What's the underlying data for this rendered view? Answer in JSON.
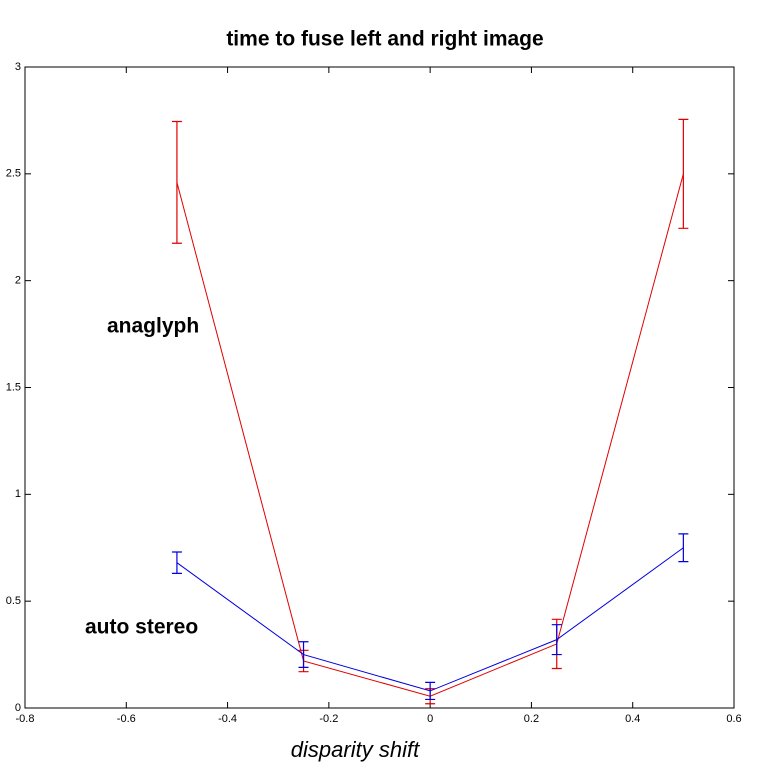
{
  "chart_data": {
    "type": "line",
    "title": "time to fuse left and right image",
    "x_label": "disparity shift",
    "x": [
      -0.5,
      -0.25,
      0,
      0.25,
      0.5
    ],
    "series": [
      {
        "name": "anaglyph",
        "color": "#e00000",
        "values": [
          2.46,
          0.22,
          0.055,
          0.3,
          2.5
        ],
        "errors": [
          0.285,
          0.05,
          0.035,
          0.115,
          0.255
        ]
      },
      {
        "name": "auto stereo",
        "color": "#0000e0",
        "values": [
          0.68,
          0.25,
          0.08,
          0.32,
          0.75
        ],
        "errors": [
          0.05,
          0.06,
          0.04,
          0.07,
          0.065
        ]
      }
    ],
    "xlim": [
      -0.8,
      0.6
    ],
    "xticks": [
      -0.8,
      -0.6,
      -0.4,
      -0.2,
      0,
      0.2,
      0.4,
      0.6
    ],
    "ylim": [
      0,
      3
    ],
    "yticks": [
      0,
      0.5,
      1,
      1.5,
      2,
      2.5,
      3
    ],
    "grid": false
  }
}
